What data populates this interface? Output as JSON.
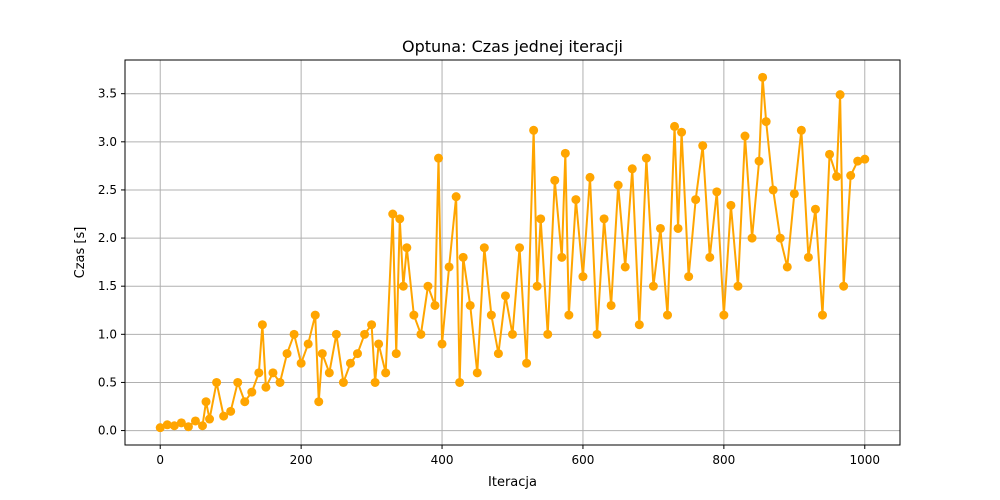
{
  "chart_data": {
    "type": "line",
    "title": "Optuna: Czas jednej iteracji",
    "xlabel": "Iteracja",
    "ylabel": "Czas [s]",
    "xlim": [
      -50,
      1050
    ],
    "ylim": [
      -0.15,
      3.85
    ],
    "xticks": [
      0,
      200,
      400,
      600,
      800,
      1000
    ],
    "yticks": [
      0.0,
      0.5,
      1.0,
      1.5,
      2.0,
      2.5,
      3.0,
      3.5
    ],
    "xtick_labels": [
      "0",
      "200",
      "400",
      "600",
      "800",
      "1000"
    ],
    "ytick_labels": [
      "0.0",
      "0.5",
      "1.0",
      "1.5",
      "2.0",
      "2.5",
      "3.0",
      "3.5"
    ],
    "grid": true,
    "marker": "circle",
    "series": [
      {
        "color": "#ffa500",
        "x": [
          0,
          10,
          20,
          30,
          40,
          50,
          60,
          65,
          70,
          80,
          90,
          100,
          110,
          120,
          130,
          140,
          145,
          150,
          160,
          170,
          180,
          190,
          200,
          210,
          220,
          225,
          230,
          240,
          250,
          260,
          270,
          280,
          290,
          300,
          305,
          310,
          320,
          330,
          335,
          340,
          345,
          350,
          360,
          370,
          380,
          390,
          395,
          400,
          410,
          420,
          425,
          430,
          440,
          450,
          460,
          470,
          480,
          490,
          500,
          510,
          520,
          530,
          535,
          540,
          550,
          560,
          570,
          575,
          580,
          590,
          600,
          610,
          620,
          630,
          640,
          650,
          660,
          670,
          680,
          690,
          700,
          710,
          720,
          730,
          735,
          740,
          750,
          760,
          770,
          780,
          790,
          800,
          810,
          820,
          830,
          840,
          850,
          855,
          860,
          870,
          880,
          890,
          900,
          910,
          920,
          930,
          940,
          950,
          960,
          965,
          970,
          980,
          990,
          1000
        ],
        "y": [
          0.03,
          0.06,
          0.05,
          0.08,
          0.04,
          0.1,
          0.05,
          0.3,
          0.12,
          0.5,
          0.15,
          0.2,
          0.5,
          0.3,
          0.4,
          0.6,
          1.1,
          0.45,
          0.6,
          0.5,
          0.8,
          1.0,
          0.7,
          0.9,
          1.2,
          0.3,
          0.8,
          0.6,
          1.0,
          0.5,
          0.7,
          0.8,
          1.0,
          1.1,
          0.5,
          0.9,
          0.6,
          2.25,
          0.8,
          2.2,
          1.5,
          1.9,
          1.2,
          1.0,
          1.5,
          1.3,
          2.83,
          0.9,
          1.7,
          2.43,
          0.5,
          1.8,
          1.3,
          0.6,
          1.9,
          1.2,
          0.8,
          1.4,
          1.0,
          1.9,
          0.7,
          3.12,
          1.5,
          2.2,
          1.0,
          2.6,
          1.8,
          2.88,
          1.2,
          2.4,
          1.6,
          2.63,
          1.0,
          2.2,
          1.3,
          2.55,
          1.7,
          2.72,
          1.1,
          2.83,
          1.5,
          2.1,
          1.2,
          3.16,
          2.1,
          3.1,
          1.6,
          2.4,
          2.96,
          1.8,
          2.48,
          1.2,
          2.34,
          1.5,
          3.06,
          2.0,
          2.8,
          3.67,
          3.21,
          2.5,
          2.0,
          1.7,
          2.46,
          3.12,
          1.8,
          2.3,
          1.2,
          2.87,
          2.64,
          3.49,
          1.5,
          2.65,
          2.8,
          2.82
        ]
      }
    ]
  }
}
